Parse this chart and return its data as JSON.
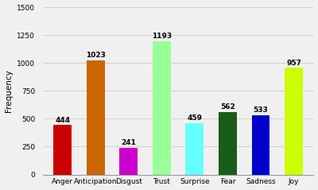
{
  "categories": [
    "Anger",
    "Anticipation",
    "Disgust",
    "Trust",
    "Surprise",
    "Fear",
    "Sadness",
    "Joy"
  ],
  "values": [
    444,
    1023,
    241,
    1193,
    459,
    562,
    533,
    957
  ],
  "bar_colors": [
    "#cc0000",
    "#cc6600",
    "#cc00cc",
    "#99ff99",
    "#66ffff",
    "#1a5c1a",
    "#0000cc",
    "#ccff00"
  ],
  "ylabel": "Frequency",
  "ylim": [
    0,
    1500
  ],
  "yticks": [
    0,
    250,
    500,
    750,
    1000,
    1250,
    1500
  ],
  "label_fontsize": 7.5,
  "tick_fontsize": 6.5,
  "bar_label_fontsize": 6.5,
  "background_color": "#f0f0f0",
  "grid_color": "#d0d0d0",
  "bar_width": 0.55
}
